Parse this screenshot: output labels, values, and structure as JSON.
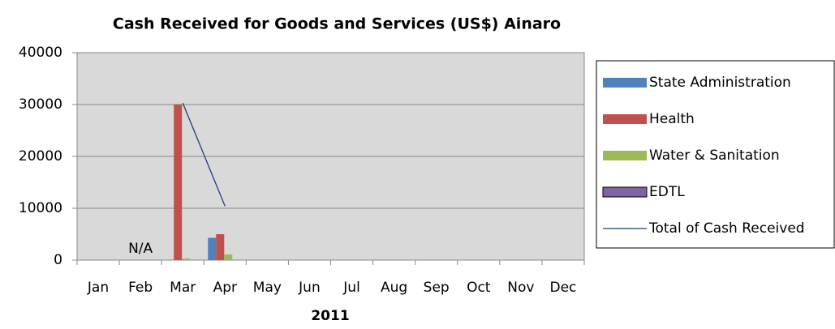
{
  "chart_data": {
    "type": "bar",
    "title": "Cash Received for Goods and Services (US$) Ainaro",
    "x_label": "2011",
    "annotation": "N/A",
    "categories": [
      "Jan",
      "Feb",
      "Mar",
      "Apr",
      "May",
      "Jun",
      "Jul",
      "Aug",
      "Sep",
      "Oct",
      "Nov",
      "Dec"
    ],
    "series": [
      {
        "name": "State Administration",
        "color": "#4f81bd",
        "values": [
          null,
          null,
          0,
          4300,
          null,
          null,
          null,
          null,
          null,
          null,
          null,
          null
        ]
      },
      {
        "name": "Health",
        "color": "#c0504d",
        "values": [
          null,
          null,
          30000,
          5000,
          null,
          null,
          null,
          null,
          null,
          null,
          null,
          null
        ]
      },
      {
        "name": "Water & Sanitation",
        "color": "#9bbb59",
        "values": [
          null,
          null,
          300,
          1100,
          null,
          null,
          null,
          null,
          null,
          null,
          null,
          null
        ]
      },
      {
        "name": "EDTL",
        "color": "#8064a2",
        "values": [
          null,
          null,
          null,
          null,
          null,
          null,
          null,
          null,
          null,
          null,
          null,
          null
        ]
      },
      {
        "name": "Total of Cash Received",
        "type": "line",
        "color": "#1f3d7a",
        "values": [
          null,
          null,
          30300,
          10400,
          null,
          null,
          null,
          null,
          null,
          null,
          null,
          null
        ]
      }
    ],
    "ylim": [
      0,
      40000
    ],
    "yticks": [
      0,
      10000,
      20000,
      30000,
      40000
    ],
    "grid": true,
    "legend": "right"
  }
}
